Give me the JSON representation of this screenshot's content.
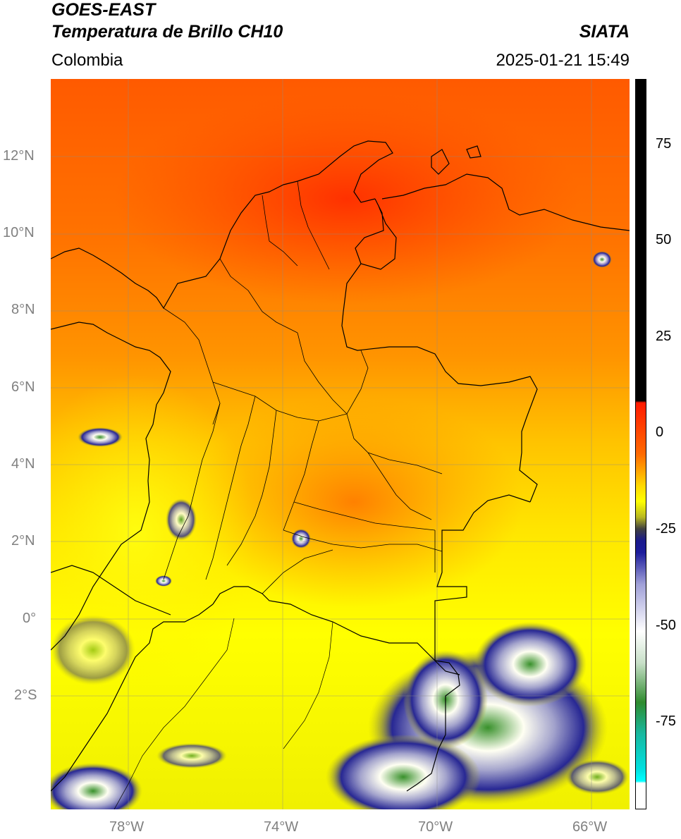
{
  "header": {
    "satellite": "GOES-EAST",
    "product": "Temperatura de Brillo CH10",
    "region": "Colombia",
    "agency": "SIATA",
    "datetime": "2025-01-21 15:49"
  },
  "axes": {
    "lat_labels": [
      "12°N",
      "10°N",
      "8°N",
      "6°N",
      "4°N",
      "2°N",
      "0°",
      "2°S"
    ],
    "lon_labels": [
      "78°W",
      "74°W",
      "70°W",
      "66°W"
    ]
  },
  "colorbar": {
    "tick_labels": [
      "75",
      "50",
      "25",
      "0",
      "-25",
      "-50",
      "-75"
    ],
    "stops": [
      {
        "value": 90,
        "color": "#000000"
      },
      {
        "value": 8.5,
        "color": "#000000"
      },
      {
        "value": 8,
        "color": "#ff1a00"
      },
      {
        "value": -5,
        "color": "#ff6a00"
      },
      {
        "value": -13,
        "color": "#ffd800"
      },
      {
        "value": -17,
        "color": "#ffff00"
      },
      {
        "value": -21,
        "color": "#b8b820"
      },
      {
        "value": -24,
        "color": "#404040"
      },
      {
        "value": -27,
        "color": "#1a1a8c"
      },
      {
        "value": -30,
        "color": "#1c1c9c"
      },
      {
        "value": -38,
        "color": "#a0a0d8"
      },
      {
        "value": -50,
        "color": "#ffffff"
      },
      {
        "value": -58,
        "color": "#c8e0c8"
      },
      {
        "value": -68,
        "color": "#2e8b2e"
      },
      {
        "value": -76,
        "color": "#18b8a0"
      },
      {
        "value": -85,
        "color": "#00e0e0"
      },
      {
        "value": -88,
        "color": "#00ffff"
      },
      {
        "value": -88.5,
        "color": "#ffffff"
      },
      {
        "value": -95,
        "color": "#ffffff"
      }
    ]
  }
}
